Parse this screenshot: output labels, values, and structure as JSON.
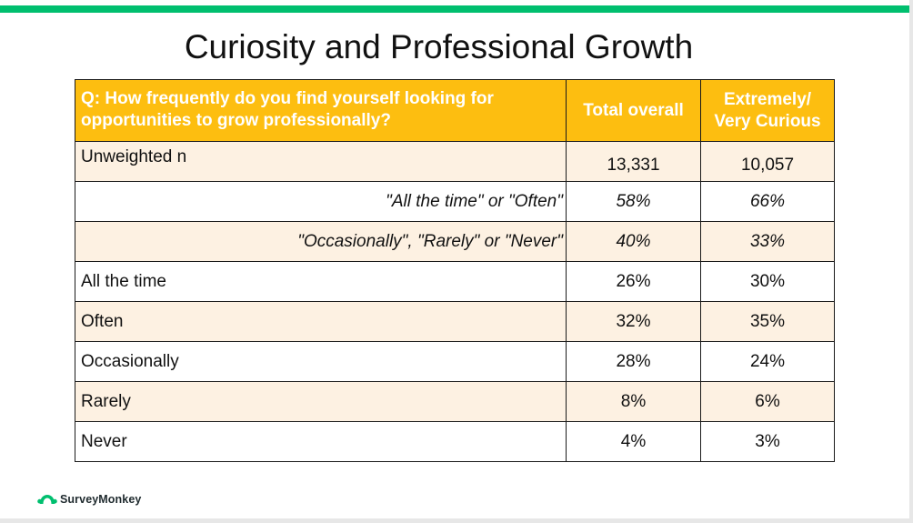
{
  "slide": {
    "title": "Curiosity and Professional Growth"
  },
  "colors": {
    "accent_bar": "#00bf6f",
    "header_bg": "#fdbe10",
    "band_bg": "#fdf1e2",
    "row_bg": "#ffffff",
    "logo_green": "#00bf6f",
    "logo_text": "#1f2a2e"
  },
  "table": {
    "headers": {
      "question": "Q: How frequently do you find yourself looking for opportunities to grow professionally?",
      "col1": "Total overall",
      "col2": "Extremely/ Very Curious"
    },
    "rows": [
      {
        "label": "Unweighted n",
        "total": "13,331",
        "curious": "10,057"
      },
      {
        "label": "\"All the time\" or \"Often\"",
        "total": "58%",
        "curious": "66%"
      },
      {
        "label": "\"Occasionally\", \"Rarely\" or \"Never\"",
        "total": "40%",
        "curious": "33%"
      },
      {
        "label": "All the time",
        "total": "26%",
        "curious": "30%"
      },
      {
        "label": "Often",
        "total": "32%",
        "curious": "35%"
      },
      {
        "label": "Occasionally",
        "total": "28%",
        "curious": "24%"
      },
      {
        "label": "Rarely",
        "total": "8%",
        "curious": "6%"
      },
      {
        "label": "Never",
        "total": "4%",
        "curious": "3%"
      }
    ]
  },
  "footer": {
    "logo_icon": "surveymonkey-logo-icon",
    "logo_text": "SurveyMonkey"
  }
}
